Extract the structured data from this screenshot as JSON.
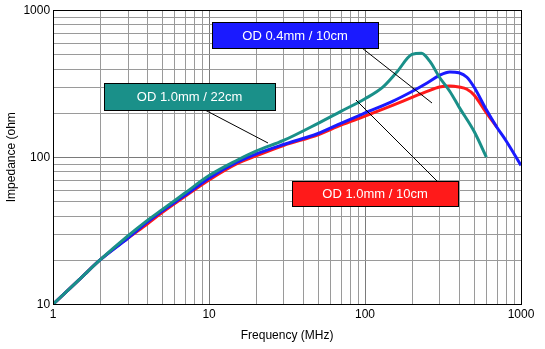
{
  "chart_data": {
    "type": "line",
    "x_label": "Frequency (MHz)",
    "y_label": "Impedance (ohm",
    "log": true,
    "grid": true,
    "xlim": [
      1,
      1000
    ],
    "xticks": [
      1,
      10,
      100,
      1000
    ],
    "ylim": [
      10,
      1000
    ],
    "yticks": [
      10,
      100,
      1000
    ],
    "series": [
      {
        "name": "OD 1.0mm / 22cm",
        "color": "#1a9089",
        "x": [
          1,
          1.5,
          2,
          3,
          4,
          5,
          7,
          10,
          15,
          20,
          30,
          50,
          70,
          100,
          130,
          160,
          200,
          230,
          260,
          300,
          350,
          400,
          500,
          600
        ],
        "values": [
          10,
          15,
          20,
          29,
          37,
          44,
          57,
          75,
          95,
          110,
          130,
          170,
          205,
          250,
          300,
          380,
          500,
          510,
          450,
          350,
          280,
          220,
          150,
          100
        ]
      },
      {
        "name": "OD 0.4mm / 10cm",
        "color": "#1a1aff",
        "x": [
          1,
          1.5,
          2,
          3,
          4,
          5,
          7,
          10,
          15,
          20,
          30,
          50,
          70,
          100,
          150,
          200,
          250,
          300,
          350,
          400,
          450,
          500,
          600,
          700,
          800,
          1000
        ],
        "values": [
          10,
          15,
          20,
          28,
          36,
          43,
          55,
          72,
          92,
          105,
          122,
          145,
          170,
          200,
          240,
          280,
          320,
          360,
          380,
          375,
          350,
          300,
          210,
          160,
          130,
          88
        ]
      },
      {
        "name": "OD 1.0mm / 10cm",
        "color": "#ff1a1a",
        "x": [
          1,
          1.5,
          2,
          3,
          4,
          5,
          7,
          10,
          15,
          20,
          30,
          50,
          70,
          100,
          150,
          200,
          250,
          300,
          350,
          400,
          450,
          500,
          600,
          700
        ],
        "values": [
          10,
          15,
          20,
          28,
          35,
          42,
          54,
          70,
          90,
          102,
          120,
          142,
          165,
          190,
          225,
          255,
          280,
          300,
          305,
          300,
          290,
          265,
          200,
          160
        ]
      }
    ]
  }
}
